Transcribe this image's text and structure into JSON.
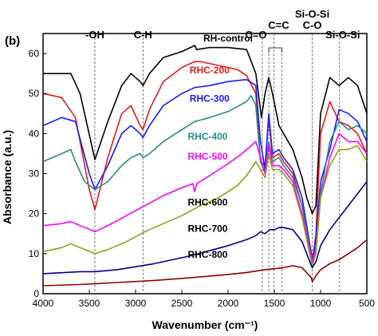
{
  "chart_data": {
    "type": "line",
    "panel_label": "(b)",
    "title": "",
    "xlabel": "Wavenumber (cm⁻¹)",
    "ylabel": "Absorbance (a.u.)",
    "xlim": [
      4000,
      500
    ],
    "ylim": [
      0,
      65
    ],
    "x_ticks": [
      4000,
      3500,
      3000,
      2500,
      2000,
      1500,
      1000,
      500
    ],
    "y_ticks": [
      0,
      10,
      20,
      30,
      40,
      50,
      60
    ],
    "grid": false,
    "annotations": [
      {
        "text": "-OH",
        "x": 3440
      },
      {
        "text": "C-H",
        "x": 2920
      },
      {
        "text": "C=O",
        "x": 1630
      },
      {
        "text": "C=C",
        "x": 1505
      },
      {
        "text": "Si-O-Si",
        "x": 1090
      },
      {
        "text": "C-O",
        "x": 1090
      },
      {
        "text": "Si-O-Si",
        "x": 795
      }
    ],
    "series": [
      {
        "name": "RH-control",
        "color": "#000000",
        "x": [
          4000,
          3700,
          3600,
          3440,
          3300,
          3150,
          3050,
          2950,
          2920,
          2850,
          2700,
          2500,
          2360,
          2340,
          2200,
          2000,
          1800,
          1700,
          1640,
          1600,
          1560,
          1520,
          1450,
          1400,
          1300,
          1200,
          1150,
          1090,
          1050,
          1000,
          900,
          800,
          700,
          600,
          500
        ],
        "y": [
          55,
          55,
          50,
          33.5,
          43,
          52,
          55,
          53,
          52,
          55,
          59,
          60.5,
          62,
          61,
          61.5,
          61.5,
          61,
          55,
          44,
          50,
          54,
          50,
          42,
          40,
          36,
          29,
          24,
          20,
          22,
          45,
          54,
          52,
          54,
          52,
          45
        ]
      },
      {
        "name": "RHC-200",
        "color": "#e41a1c",
        "x": [
          4000,
          3800,
          3650,
          3500,
          3440,
          3300,
          3150,
          3050,
          2950,
          2920,
          2850,
          2700,
          2500,
          2360,
          2300,
          2100,
          1900,
          1800,
          1700,
          1650,
          1600,
          1560,
          1520,
          1450,
          1400,
          1300,
          1200,
          1100,
          1090,
          1050,
          1000,
          900,
          800,
          700,
          600,
          500
        ],
        "y": [
          50,
          49,
          44,
          26,
          21,
          34,
          45,
          47,
          42,
          41,
          46,
          53,
          56.5,
          58,
          58,
          57,
          56,
          54.5,
          50,
          33,
          32,
          44,
          34,
          35,
          33,
          30,
          22,
          10,
          8,
          15,
          40,
          48,
          43,
          42,
          40,
          35
        ]
      },
      {
        "name": "RHC-300",
        "color": "#1a1aff",
        "x": [
          4000,
          3800,
          3650,
          3500,
          3440,
          3300,
          3150,
          3050,
          2950,
          2920,
          2850,
          2700,
          2500,
          2360,
          2200,
          2000,
          1800,
          1700,
          1650,
          1600,
          1560,
          1520,
          1450,
          1400,
          1300,
          1200,
          1100,
          1090,
          1050,
          1000,
          900,
          800,
          700,
          600,
          500
        ],
        "y": [
          42,
          44,
          43,
          30,
          26,
          32,
          40,
          42,
          40,
          39,
          42,
          47,
          50,
          51.5,
          52,
          53,
          53.5,
          52,
          38,
          31,
          45,
          35,
          36,
          34,
          31,
          24,
          10,
          8,
          14,
          28,
          36,
          46,
          45,
          43,
          38
        ]
      },
      {
        "name": "RHC-400",
        "color": "#2a8a8a",
        "x": [
          4000,
          3800,
          3700,
          3650,
          3550,
          3440,
          3300,
          3150,
          3050,
          2950,
          2920,
          2850,
          2700,
          2500,
          2360,
          2200,
          2000,
          1800,
          1750,
          1700,
          1650,
          1600,
          1560,
          1520,
          1450,
          1400,
          1300,
          1200,
          1100,
          1090,
          1050,
          1000,
          900,
          800,
          700,
          600,
          500
        ],
        "y": [
          33,
          35,
          36,
          33,
          28,
          26,
          28,
          32,
          34,
          35,
          34,
          35,
          38,
          41,
          43,
          44,
          45.5,
          48,
          49.5,
          47,
          33,
          30,
          38,
          33,
          34,
          32,
          29,
          22,
          9,
          7,
          12,
          25,
          38,
          43,
          41,
          42,
          40
        ]
      },
      {
        "name": "RHC-500",
        "color": "#ff00ff",
        "x": [
          4000,
          3800,
          3700,
          3600,
          3440,
          3300,
          3100,
          2900,
          2700,
          2500,
          2380,
          2360,
          2340,
          2200,
          2000,
          1850,
          1750,
          1700,
          1650,
          1600,
          1560,
          1520,
          1450,
          1400,
          1300,
          1200,
          1100,
          1090,
          1050,
          1000,
          900,
          800,
          700,
          600,
          500
        ],
        "y": [
          17,
          17.5,
          18,
          17,
          15.5,
          17,
          19.5,
          22,
          24.5,
          26.5,
          27.5,
          25.5,
          27.5,
          29.5,
          32.5,
          35,
          37,
          38,
          34,
          30,
          37,
          32,
          32,
          31,
          28,
          20,
          9,
          8,
          11,
          24,
          34,
          40,
          38,
          38,
          35
        ]
      },
      {
        "name": "RHC-600",
        "color": "#9a9a1a",
        "x": [
          4000,
          3800,
          3700,
          3600,
          3440,
          3300,
          3100,
          2900,
          2700,
          2500,
          2300,
          2100,
          1900,
          1800,
          1700,
          1650,
          1600,
          1560,
          1520,
          1450,
          1400,
          1300,
          1200,
          1100,
          1090,
          1050,
          1000,
          900,
          800,
          700,
          600,
          500
        ],
        "y": [
          10.5,
          11.5,
          12.5,
          11.5,
          10,
          11,
          13,
          15.5,
          17.5,
          19.5,
          22,
          24,
          27,
          29.5,
          33,
          31,
          29,
          35,
          31,
          31,
          30,
          27,
          19,
          8,
          7,
          10,
          24,
          32,
          36,
          36,
          37,
          33
        ]
      },
      {
        "name": "RHC-700",
        "color": "#00008b",
        "x": [
          4000,
          3600,
          3440,
          3200,
          2800,
          2400,
          2000,
          1800,
          1700,
          1650,
          1600,
          1550,
          1500,
          1450,
          1400,
          1300,
          1200,
          1100,
          1090,
          1050,
          1000,
          900,
          800,
          700,
          600,
          500
        ],
        "y": [
          5,
          5.5,
          5.5,
          6,
          7.5,
          9.5,
          12,
          13.5,
          14.5,
          15.5,
          15,
          16,
          16,
          16.5,
          16.5,
          16,
          13,
          7,
          6.5,
          8,
          12,
          16,
          19,
          22,
          25,
          28
        ]
      },
      {
        "name": "RHC-800",
        "color": "#8b0000",
        "x": [
          4000,
          3600,
          3200,
          2800,
          2400,
          2000,
          1800,
          1600,
          1400,
          1300,
          1200,
          1100,
          1090,
          1050,
          1000,
          900,
          800,
          700,
          600,
          500
        ],
        "y": [
          2,
          2.3,
          2.8,
          3.3,
          4,
          4.8,
          5.3,
          6,
          6.5,
          7,
          6.5,
          4,
          3,
          4.5,
          6,
          7.5,
          8.5,
          10,
          11.5,
          13.5
        ]
      }
    ],
    "series_labels": [
      {
        "text": "RH-control",
        "color": "#000000",
        "x": 2000,
        "y": 63
      },
      {
        "text": "RHC-200",
        "color": "#e41a1c",
        "x": 2200,
        "y": 55
      },
      {
        "text": "RHC-300",
        "color": "#1a1aff",
        "x": 2200,
        "y": 48
      },
      {
        "text": "RHC-400",
        "color": "#2a8a8a",
        "x": 2220,
        "y": 38.5
      },
      {
        "text": "RHC-500",
        "color": "#ff00ff",
        "x": 2220,
        "y": 33.5
      },
      {
        "text": "RHC-600",
        "color": "#000000",
        "x": 2220,
        "y": 22
      },
      {
        "text": "RHC-700",
        "color": "#000000",
        "x": 2220,
        "y": 15.5
      },
      {
        "text": "RHC-800",
        "color": "#000000",
        "x": 2220,
        "y": 9
      }
    ]
  }
}
